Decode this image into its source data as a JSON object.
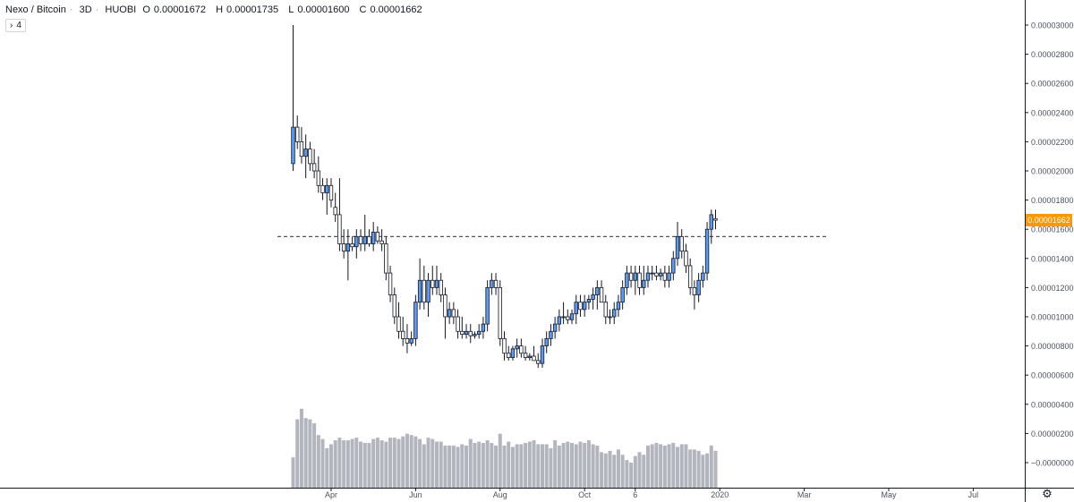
{
  "header": {
    "symbol": "Nexo / Bitcoin",
    "interval": "3D",
    "exchange": "HUOBI",
    "open_label": "O",
    "open": "0.00001672",
    "high_label": "H",
    "high": "0.00001735",
    "low_label": "L",
    "low": "0.00001600",
    "close_label": "C",
    "close": "0.00001662"
  },
  "indicator_toggle": {
    "chevron": "›",
    "count": "4"
  },
  "last_price_tag": "0.00001662",
  "settings_icon": "gear-icon",
  "colors": {
    "up_body": "#5b9cf6",
    "down_body": "#ffffff",
    "wick": "#131722",
    "volume": "#b2b5be",
    "price_tag": "#ff9800",
    "grid_border": "#131722",
    "dashed_line": "#555555"
  },
  "chart_data": {
    "type": "candlestick",
    "x_tick_labels": [
      "Apr",
      "Jun",
      "Aug",
      "Oct",
      "6",
      "2020",
      "Mar",
      "May",
      "Jul"
    ],
    "y_tick_labels": [
      "0.00003000",
      "0.00002800",
      "0.00002600",
      "0.00002400",
      "0.00002200",
      "0.00002000",
      "0.00001800",
      "0.00001600",
      "0.00001400",
      "0.00001200",
      "0.00001000",
      "0.00000800",
      "0.00000600",
      "0.00000400",
      "0.00000200",
      "−0.00000000"
    ],
    "y_ticks": [
      3e-05,
      2.8e-05,
      2.6e-05,
      2.4e-05,
      2.2e-05,
      2e-05,
      1.8e-05,
      1.6e-05,
      1.4e-05,
      1.2e-05,
      1e-05,
      8e-06,
      6e-06,
      4e-06,
      2e-06,
      0
    ],
    "ylim": [
      -1.2e-06,
      3.15e-05
    ],
    "horizontal_line": 1.55e-05,
    "last_close": 1.662e-05,
    "ohlc_scale": 1e-08,
    "candles": [
      [
        2050,
        3000,
        2000,
        2300
      ],
      [
        2300,
        2380,
        2150,
        2200
      ],
      [
        2200,
        2300,
        2050,
        2100
      ],
      [
        2100,
        2250,
        1950,
        2150
      ],
      [
        2150,
        2200,
        2000,
        2050
      ],
      [
        2050,
        2150,
        1950,
        2000
      ],
      [
        2000,
        2100,
        1850,
        1900
      ],
      [
        1900,
        1950,
        1800,
        1850
      ],
      [
        1850,
        1950,
        1700,
        1900
      ],
      [
        1900,
        1950,
        1750,
        1800
      ],
      [
        1750,
        1850,
        1650,
        1700
      ],
      [
        1700,
        1950,
        1450,
        1500
      ],
      [
        1500,
        1600,
        1400,
        1450
      ],
      [
        1450,
        1600,
        1250,
        1500
      ],
      [
        1500,
        1550,
        1450,
        1480
      ],
      [
        1480,
        1600,
        1400,
        1550
      ],
      [
        1550,
        1600,
        1450,
        1500
      ],
      [
        1500,
        1700,
        1450,
        1550
      ],
      [
        1550,
        1600,
        1480,
        1500
      ],
      [
        1500,
        1650,
        1450,
        1580
      ],
      [
        1580,
        1620,
        1500,
        1520
      ],
      [
        1520,
        1600,
        1450,
        1500
      ],
      [
        1500,
        1550,
        1250,
        1300
      ],
      [
        1300,
        1350,
        1100,
        1150
      ],
      [
        1150,
        1200,
        950,
        1000
      ],
      [
        1000,
        1100,
        850,
        900
      ],
      [
        900,
        1000,
        800,
        850
      ],
      [
        850,
        950,
        750,
        820
      ],
      [
        820,
        900,
        800,
        850
      ],
      [
        850,
        1150,
        800,
        1100
      ],
      [
        1100,
        1400,
        1050,
        1250
      ],
      [
        1250,
        1350,
        1050,
        1100
      ],
      [
        1100,
        1300,
        1000,
        1250
      ],
      [
        1250,
        1350,
        1150,
        1200
      ],
      [
        1200,
        1350,
        1150,
        1250
      ],
      [
        1250,
        1300,
        1100,
        1150
      ],
      [
        1150,
        1200,
        850,
        1000
      ],
      [
        1000,
        1100,
        950,
        1050
      ],
      [
        1050,
        1100,
        950,
        1000
      ],
      [
        1000,
        1050,
        850,
        900
      ],
      [
        900,
        1000,
        850,
        880
      ],
      [
        880,
        950,
        850,
        900
      ],
      [
        900,
        950,
        820,
        870
      ],
      [
        870,
        900,
        850,
        880
      ],
      [
        880,
        950,
        850,
        900
      ],
      [
        900,
        1000,
        850,
        950
      ],
      [
        950,
        1250,
        900,
        1200
      ],
      [
        1200,
        1300,
        1150,
        1250
      ],
      [
        1250,
        1300,
        1150,
        1200
      ],
      [
        1200,
        1250,
        800,
        850
      ],
      [
        850,
        900,
        700,
        750
      ],
      [
        750,
        800,
        700,
        720
      ],
      [
        720,
        800,
        700,
        780
      ],
      [
        780,
        850,
        720,
        800
      ],
      [
        800,
        850,
        720,
        750
      ],
      [
        750,
        800,
        700,
        720
      ],
      [
        720,
        750,
        700,
        730
      ],
      [
        730,
        800,
        700,
        700
      ],
      [
        700,
        750,
        650,
        680
      ],
      [
        680,
        850,
        650,
        800
      ],
      [
        800,
        900,
        750,
        850
      ],
      [
        850,
        950,
        800,
        900
      ],
      [
        900,
        1000,
        850,
        950
      ],
      [
        950,
        1050,
        900,
        1000
      ],
      [
        1000,
        1100,
        950,
        1000
      ],
      [
        1000,
        1050,
        950,
        980
      ],
      [
        980,
        1050,
        950,
        1020
      ],
      [
        1020,
        1150,
        950,
        1100
      ],
      [
        1100,
        1150,
        1000,
        1050
      ],
      [
        1050,
        1150,
        1000,
        1100
      ],
      [
        1100,
        1150,
        1050,
        1120
      ],
      [
        1120,
        1200,
        1050,
        1150
      ],
      [
        1150,
        1250,
        1050,
        1200
      ],
      [
        1200,
        1250,
        1100,
        1100
      ],
      [
        1100,
        1150,
        950,
        1000
      ],
      [
        1000,
        1050,
        950,
        1000
      ],
      [
        1000,
        1100,
        950,
        1050
      ],
      [
        1050,
        1150,
        1000,
        1100
      ],
      [
        1100,
        1250,
        1050,
        1200
      ],
      [
        1200,
        1350,
        1150,
        1300
      ],
      [
        1300,
        1350,
        1200,
        1250
      ],
      [
        1250,
        1350,
        1150,
        1300
      ],
      [
        1300,
        1350,
        1150,
        1200
      ],
      [
        1200,
        1350,
        1150,
        1250
      ],
      [
        1250,
        1350,
        1200,
        1300
      ],
      [
        1300,
        1350,
        1250,
        1300
      ],
      [
        1300,
        1350,
        1250,
        1280
      ],
      [
        1280,
        1330,
        1250,
        1300
      ],
      [
        1300,
        1350,
        1200,
        1250
      ],
      [
        1250,
        1350,
        1200,
        1300
      ],
      [
        1300,
        1450,
        1250,
        1400
      ],
      [
        1400,
        1650,
        1350,
        1550
      ],
      [
        1550,
        1600,
        1400,
        1450
      ],
      [
        1450,
        1500,
        1300,
        1350
      ],
      [
        1350,
        1400,
        1150,
        1200
      ],
      [
        1200,
        1250,
        1050,
        1150
      ],
      [
        1150,
        1300,
        1100,
        1250
      ],
      [
        1250,
        1350,
        1200,
        1300
      ],
      [
        1300,
        1650,
        1250,
        1600
      ],
      [
        1600,
        1735,
        1500,
        1700
      ],
      [
        1672,
        1735,
        1600,
        1662
      ]
    ],
    "volume_scale": 1e-08,
    "volume": [
      40,
      330,
      410,
      340,
      330,
      300,
      210,
      180,
      110,
      140,
      170,
      190,
      170,
      170,
      180,
      190,
      160,
      150,
      150,
      180,
      190,
      170,
      160,
      190,
      190,
      180,
      200,
      220,
      210,
      200,
      180,
      140,
      190,
      180,
      160,
      160,
      130,
      130,
      130,
      120,
      140,
      130,
      180,
      150,
      160,
      150,
      170,
      150,
      130,
      220,
      130,
      160,
      120,
      140,
      140,
      150,
      160,
      170,
      140,
      140,
      140,
      110,
      170,
      130,
      150,
      160,
      150,
      140,
      160,
      150,
      170,
      140,
      130,
      80,
      70,
      90,
      60,
      100,
      60,
      20,
      0,
      50,
      80,
      60,
      130,
      140,
      150,
      140,
      130,
      140,
      150,
      120,
      140,
      140,
      100,
      100,
      90,
      60,
      70,
      130,
      90
    ]
  }
}
